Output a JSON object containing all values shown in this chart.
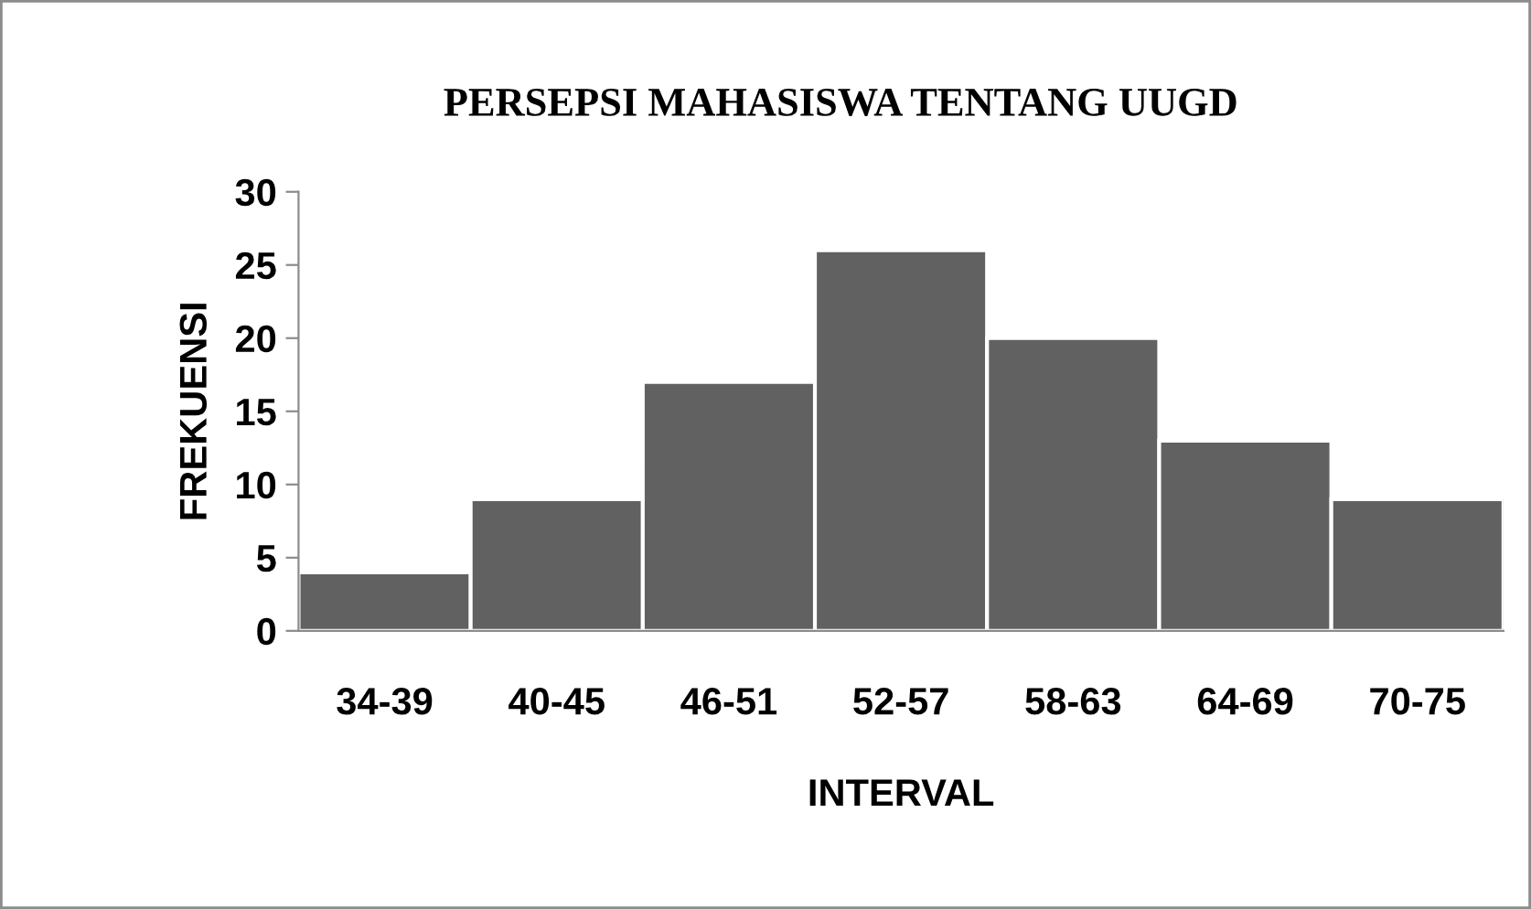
{
  "chart_data": {
    "type": "bar",
    "title": "PERSEPSI MAHASISWA TENTANG UUGD",
    "xlabel": "INTERVAL",
    "ylabel": "FREKUENSI",
    "categories": [
      "34-39",
      "40-45",
      "46-51",
      "52-57",
      "58-63",
      "64-69",
      "70-75"
    ],
    "values": [
      4,
      9,
      17,
      26,
      20,
      13,
      9
    ],
    "color": "#616161",
    "ylim": [
      0,
      30
    ],
    "yticks": [
      0,
      5,
      10,
      15,
      20,
      25,
      30
    ],
    "grid": false,
    "legend": false
  }
}
